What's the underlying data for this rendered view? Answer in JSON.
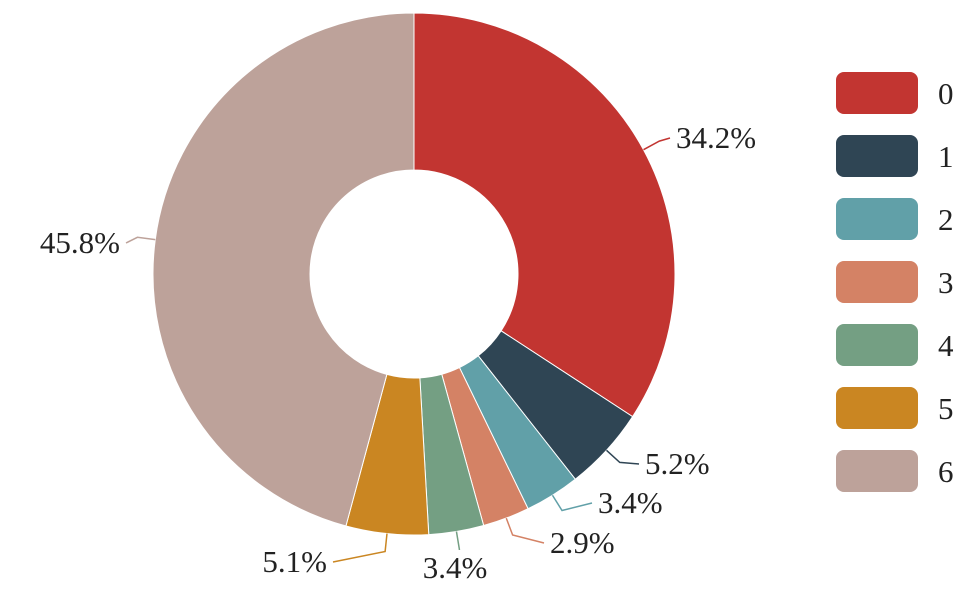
{
  "chart_data": {
    "type": "pie",
    "style": "donut",
    "categories": [
      "0",
      "1",
      "2",
      "3",
      "4",
      "5",
      "6"
    ],
    "values": [
      34.2,
      5.2,
      3.4,
      2.9,
      3.4,
      5.1,
      45.8
    ],
    "labels": [
      "34.2%",
      "5.2%",
      "3.4%",
      "2.9%",
      "3.4%",
      "5.1%",
      "45.8%"
    ],
    "colors": [
      "#c23531",
      "#2f4554",
      "#61a0a8",
      "#d48265",
      "#749f83",
      "#ca8622",
      "#bda29a"
    ],
    "legend": {
      "position": "right",
      "items": [
        "0",
        "1",
        "2",
        "3",
        "4",
        "5",
        "6"
      ]
    },
    "start_angle_deg": 90,
    "direction": "clockwise"
  }
}
